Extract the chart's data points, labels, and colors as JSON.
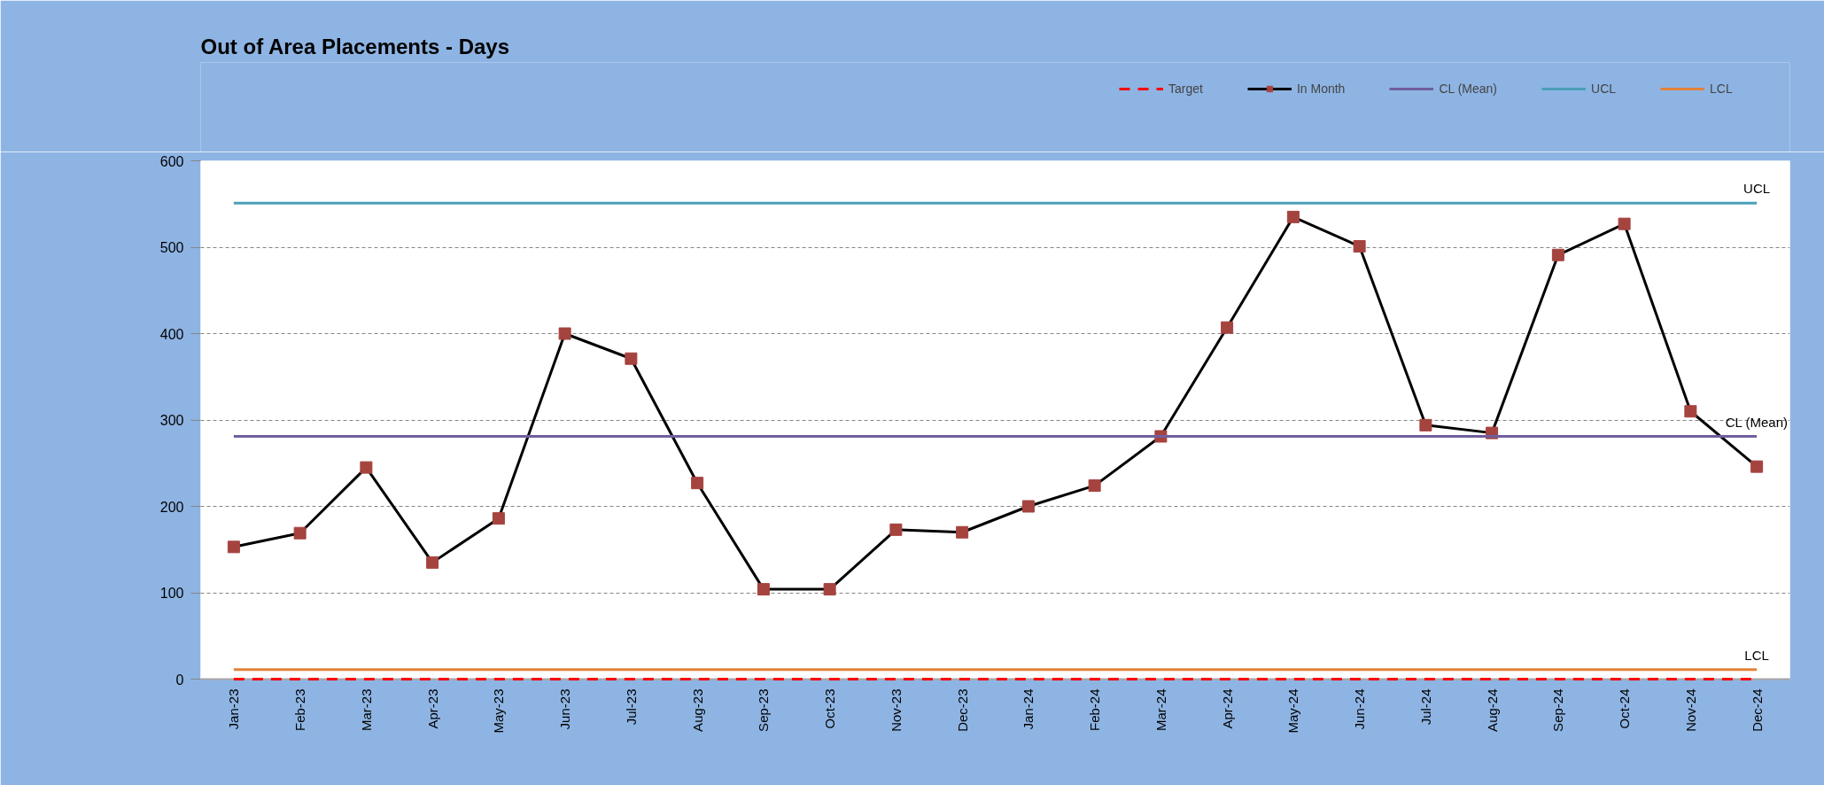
{
  "chart_data": {
    "type": "line",
    "title": "Out of Area Placements - Days",
    "categories": [
      "Jan-23",
      "Feb-23",
      "Mar-23",
      "Apr-23",
      "May-23",
      "Jun-23",
      "Jul-23",
      "Aug-23",
      "Sep-23",
      "Oct-23",
      "Nov-23",
      "Dec-23",
      "Jan-24",
      "Feb-24",
      "Mar-24",
      "Apr-24",
      "May-24",
      "Jun-24",
      "Jul-24",
      "Aug-24",
      "Sep-24",
      "Oct-24",
      "Nov-24",
      "Dec-24"
    ],
    "series": [
      {
        "name": "Target",
        "color": "#ff0000",
        "line_style": "dashed",
        "values": [
          0,
          0,
          0,
          0,
          0,
          0,
          0,
          0,
          0,
          0,
          0,
          0,
          0,
          0,
          0,
          0,
          0,
          0,
          0,
          0,
          0,
          0,
          0,
          0
        ]
      },
      {
        "name": "In Month",
        "color": "#000000",
        "marker": "square",
        "colors": [
          "#a5433f",
          "#a5433f",
          "#a5433f",
          "#a5433f",
          "#a5433f",
          "#a5433f",
          "#a5433f",
          "#a5433f",
          "#a5433f",
          "#a5433f",
          "#a5433f",
          "#a5433f",
          "#a5433f",
          "#a5433f",
          "#a5433f",
          "#a5433f",
          "#a5433f",
          "#a5433f",
          "#a5433f",
          "#a5433f",
          "#a5433f",
          "#a5433f",
          "#a5433f",
          "#a5433f"
        ],
        "values": [
          153,
          169,
          245,
          135,
          186,
          400,
          371,
          227,
          104,
          104,
          173,
          170,
          200,
          224,
          281,
          407,
          535,
          501,
          294,
          285,
          491,
          527,
          310,
          246
        ]
      },
      {
        "name": "CL (Mean)",
        "color": "#6f5f9e",
        "values": [
          281,
          281,
          281,
          281,
          281,
          281,
          281,
          281,
          281,
          281,
          281,
          281,
          281,
          281,
          281,
          281,
          281,
          281,
          281,
          281,
          281,
          281,
          281,
          281
        ]
      },
      {
        "name": "UCL",
        "color": "#4a9fb8",
        "values": [
          551,
          551,
          551,
          551,
          551,
          551,
          551,
          551,
          551,
          551,
          551,
          551,
          551,
          551,
          551,
          551,
          551,
          551,
          551,
          551,
          551,
          551,
          551,
          551
        ]
      },
      {
        "name": "LCL",
        "color": "#e2823a",
        "values": [
          11,
          11,
          11,
          11,
          11,
          11,
          11,
          11,
          11,
          11,
          11,
          11,
          11,
          11,
          11,
          11,
          11,
          11,
          11,
          11,
          11,
          11,
          11,
          11
        ]
      }
    ],
    "ylim": [
      0,
      600
    ],
    "yticks": [
      0,
      100,
      200,
      300,
      400,
      500,
      600
    ],
    "grid": "y",
    "legend": "top right",
    "annotations": [
      {
        "text": "UCL",
        "x": "Dec-24",
        "y": 551
      },
      {
        "text": "CL (Mean)",
        "x": "Dec-24",
        "y": 281
      },
      {
        "text": "LCL",
        "x": "Dec-24",
        "y": 11
      }
    ]
  }
}
